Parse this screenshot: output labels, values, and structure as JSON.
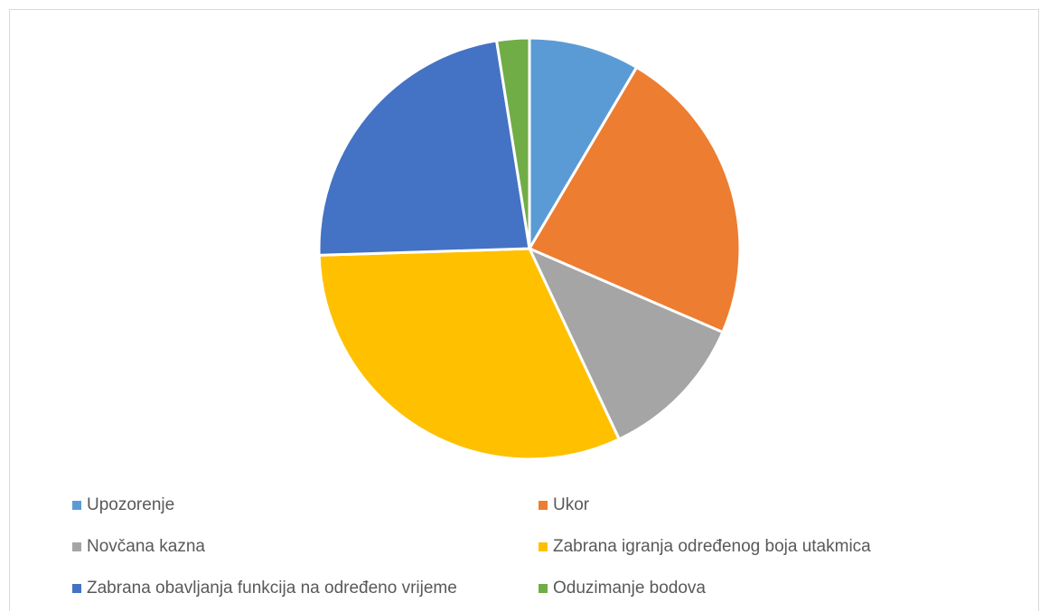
{
  "chart_data": {
    "type": "pie",
    "title": "",
    "categories": [
      "Upozorenje",
      "Ukor",
      "Novčana kazna",
      "Zabrana igranja određenog boja utakmica",
      "Zabrana obavljanja funkcija na određeno vrijeme",
      "Oduzimanje bodova"
    ],
    "values": [
      8.5,
      23,
      11.5,
      31.5,
      23,
      2.5
    ],
    "colors": [
      "#5B9BD5",
      "#ED7D31",
      "#A5A5A5",
      "#FFC000",
      "#4472C4",
      "#70AD47"
    ],
    "legend_position": "bottom"
  }
}
